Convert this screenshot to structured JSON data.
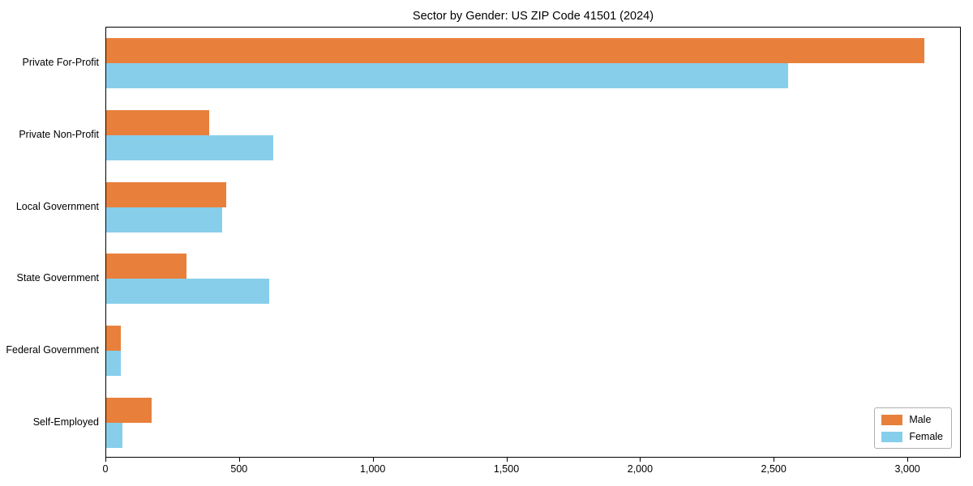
{
  "chart_data": {
    "type": "bar",
    "orientation": "horizontal",
    "title": "Sector by Gender: US ZIP Code 41501 (2024)",
    "categories": [
      "Private For-Profit",
      "Private Non-Profit",
      "Local Government",
      "State Government",
      "Federal Government",
      "Self-Employed"
    ],
    "series": [
      {
        "name": "Male",
        "color": "#e8803c",
        "values": [
          3060,
          385,
          450,
          300,
          55,
          170
        ]
      },
      {
        "name": "Female",
        "color": "#87ceeb",
        "values": [
          2550,
          625,
          435,
          610,
          55,
          60
        ]
      }
    ],
    "xlim": [
      0,
      3200
    ],
    "xticks": [
      0,
      500,
      1000,
      1500,
      2000,
      2500,
      3000
    ],
    "xtick_labels": [
      "0",
      "500",
      "1,000",
      "1,500",
      "2,000",
      "2,500",
      "3,000"
    ],
    "xlabel": "",
    "ylabel": "",
    "grid": false,
    "legend_position": "lower right"
  }
}
